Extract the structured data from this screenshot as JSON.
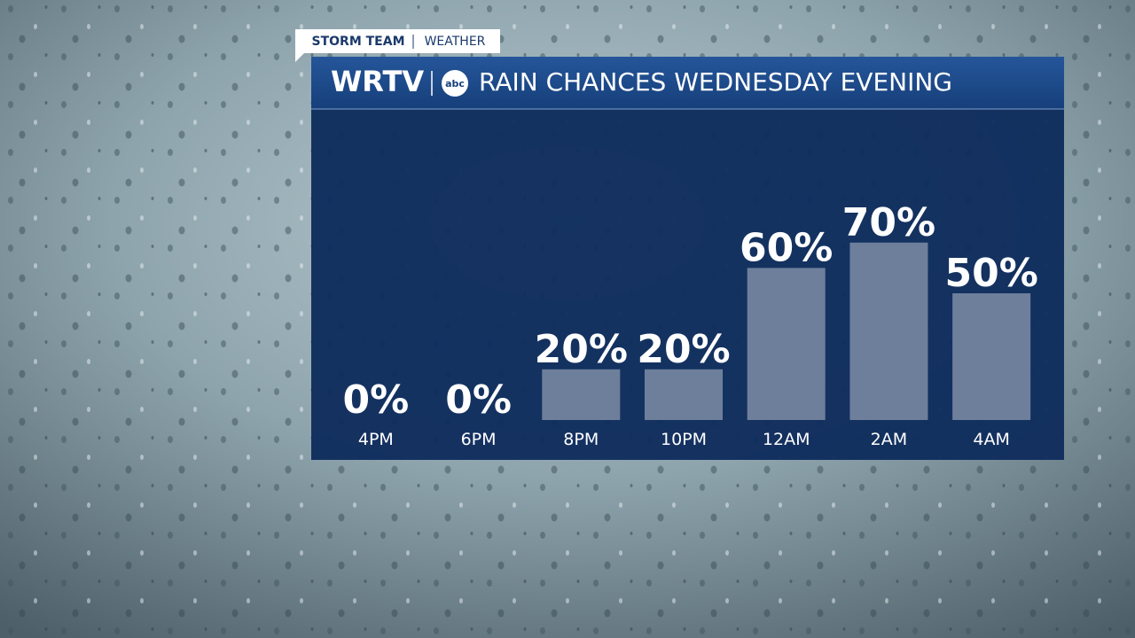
{
  "chart_data": {
    "type": "bar",
    "tag": "STORM TEAM",
    "tag_section": "WEATHER",
    "station": "WRTV",
    "network": "abc",
    "title": "RAIN CHANCES WEDNESDAY EVENING",
    "categories": [
      "4PM",
      "6PM",
      "8PM",
      "10PM",
      "12AM",
      "2AM",
      "4AM"
    ],
    "values": [
      0,
      0,
      20,
      20,
      60,
      70,
      50
    ],
    "value_labels": [
      "0%",
      "0%",
      "20%",
      "20%",
      "60%",
      "70%",
      "50%"
    ],
    "color": "#6e7f9c"
  }
}
